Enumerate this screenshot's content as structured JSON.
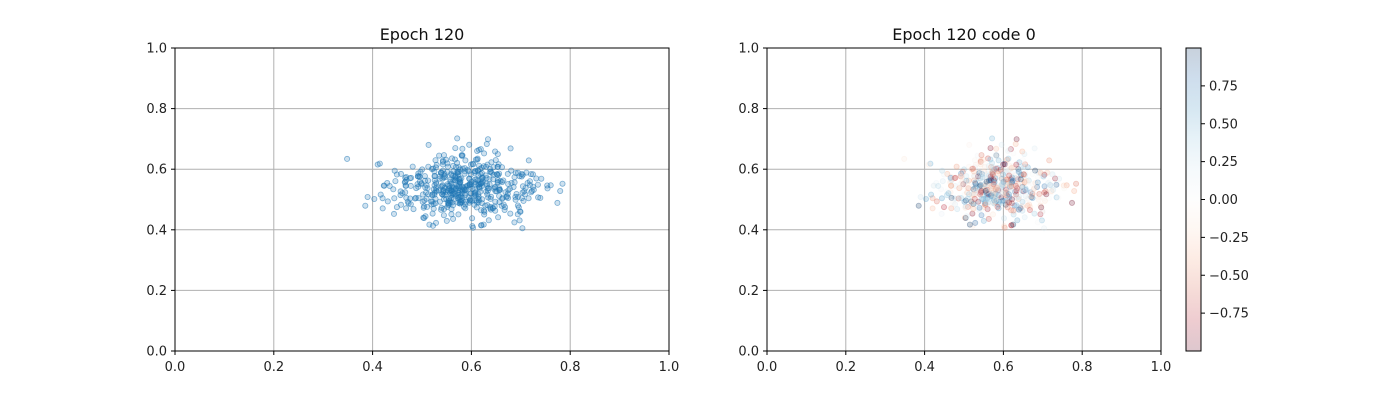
{
  "chart_data": [
    {
      "type": "scatter",
      "title": "Epoch 120",
      "xlim": [
        0.0,
        1.0
      ],
      "ylim": [
        0.0,
        1.0
      ],
      "xticks": [
        "0.0",
        "0.2",
        "0.4",
        "0.6",
        "0.8",
        "1.0"
      ],
      "yticks": [
        "0.0",
        "0.2",
        "0.4",
        "0.6",
        "0.8",
        "1.0"
      ],
      "grid": true,
      "marker_color": "#1f77b4",
      "cluster": {
        "center": [
          0.58,
          0.54
        ],
        "spread": [
          0.075,
          0.055
        ],
        "n_points": 500,
        "x_range": [
          0.32,
          0.79
        ],
        "y_range": [
          0.38,
          0.74
        ]
      }
    },
    {
      "type": "scatter",
      "title": "Epoch 120 code 0",
      "xlim": [
        0.0,
        1.0
      ],
      "ylim": [
        0.0,
        1.0
      ],
      "xticks": [
        "0.0",
        "0.2",
        "0.4",
        "0.6",
        "0.8",
        "1.0"
      ],
      "yticks": [
        "0.0",
        "0.2",
        "0.4",
        "0.6",
        "0.8",
        "1.0"
      ],
      "grid": true,
      "colormap": "RdBu",
      "colorbar": {
        "range": [
          -1.0,
          1.0
        ],
        "ticks": [
          "0.75",
          "0.50",
          "0.25",
          "0.00",
          "−0.25",
          "−0.50",
          "−0.75"
        ],
        "tick_values": [
          0.75,
          0.5,
          0.25,
          0.0,
          -0.25,
          -0.5,
          -0.75
        ]
      },
      "cluster": {
        "center": [
          0.58,
          0.54
        ],
        "spread": [
          0.075,
          0.055
        ],
        "n_points": 500,
        "x_range": [
          0.32,
          0.79
        ],
        "y_range": [
          0.38,
          0.74
        ]
      }
    }
  ]
}
